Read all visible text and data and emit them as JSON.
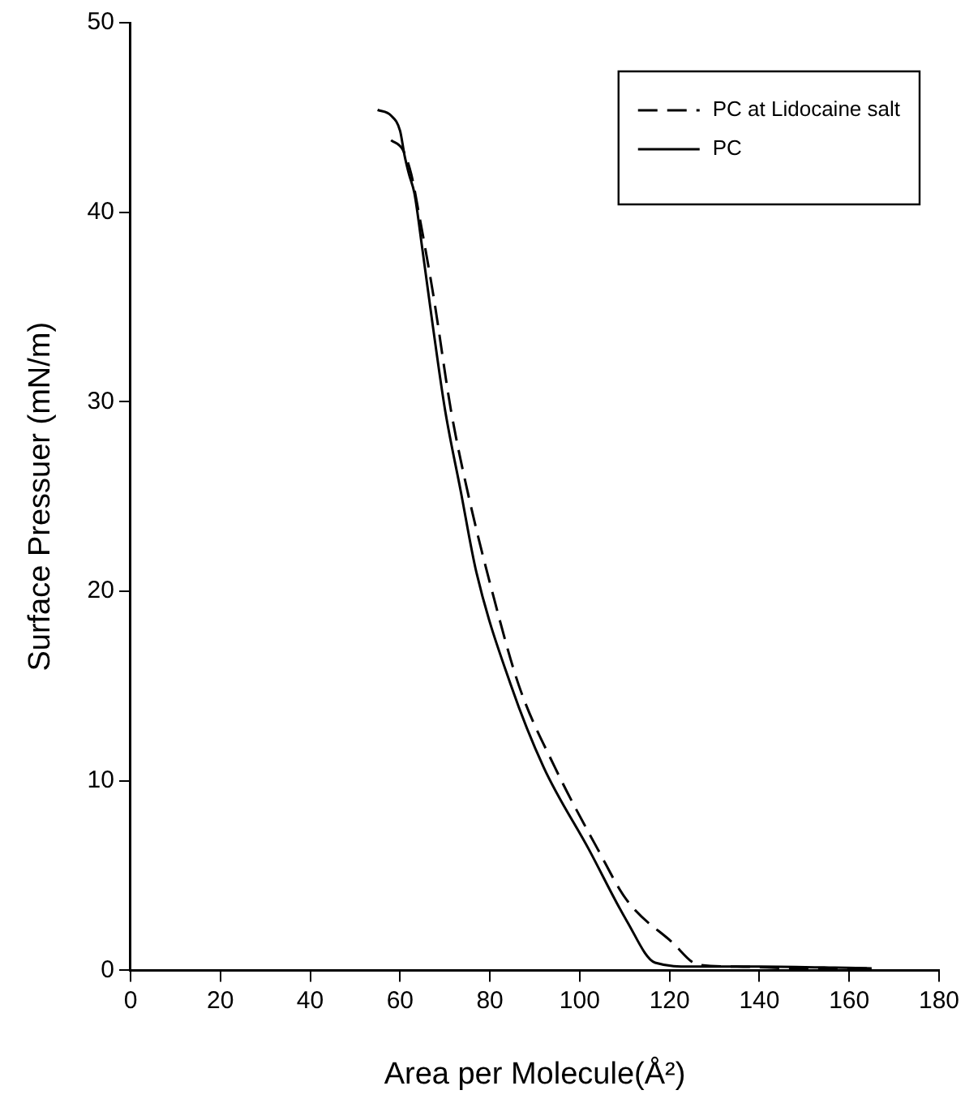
{
  "chart_data": {
    "type": "line",
    "xlabel": "Area per Molecule(Å²)",
    "ylabel": "Surface Pressuer (mN/m)",
    "xlim": [
      0,
      180
    ],
    "xticks": [
      0,
      20,
      40,
      60,
      80,
      100,
      120,
      140,
      160,
      180
    ],
    "ylim": [
      0,
      50
    ],
    "yticks": [
      0,
      10,
      20,
      30,
      40,
      50
    ],
    "grid": false,
    "legend": "top right",
    "marker": "none",
    "series": [
      {
        "name": "PC at Lidocaine salt",
        "color": "#000000",
        "line_style": "dashed",
        "x": [
          58,
          60.6,
          62.5,
          64.3,
          67.5,
          71.3,
          75,
          80.5,
          86.5,
          94.5,
          104,
          110.5,
          120.5,
          126.4,
          135,
          150,
          165
        ],
        "values": [
          43.8,
          43.3,
          42,
          39.8,
          35.5,
          29.6,
          25.3,
          20,
          15,
          10.7,
          6.4,
          3.7,
          1.5,
          0.3,
          0.2,
          0.1,
          0.1
        ]
      },
      {
        "name": "PC",
        "color": "#000000",
        "line_style": "solid",
        "x": [
          55,
          58,
          60,
          61,
          62,
          63.2,
          65,
          67.3,
          70,
          73.5,
          77,
          84.6,
          92,
          102,
          110.5,
          116.8,
          125,
          140,
          165
        ],
        "values": [
          45.4,
          45.1,
          44.3,
          43,
          42,
          41,
          38,
          34,
          29.6,
          25.3,
          21,
          15.1,
          10.7,
          6.4,
          2.6,
          0.4,
          0.2,
          0.2,
          0.1
        ]
      }
    ]
  }
}
